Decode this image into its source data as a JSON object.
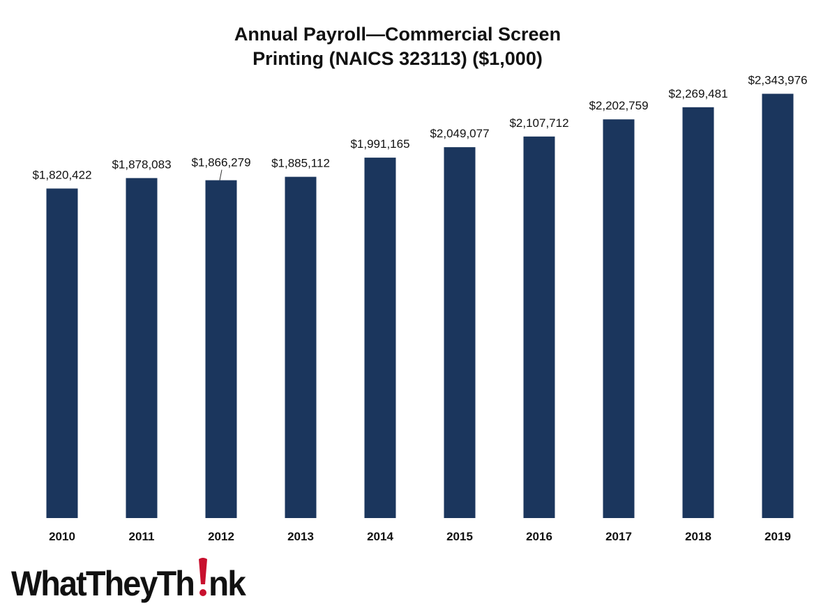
{
  "chart_data": {
    "type": "bar",
    "title": "Annual Payroll—Commercial Screen Printing  (NAICS 323113) ($1,000)",
    "title_lines": [
      "Annual Payroll—Commercial Screen",
      "Printing  (NAICS 323113) ($1,000)"
    ],
    "categories": [
      "2010",
      "2011",
      "2012",
      "2013",
      "2014",
      "2015",
      "2016",
      "2017",
      "2018",
      "2019"
    ],
    "values": [
      1820422,
      1878083,
      1866279,
      1885112,
      1991165,
      2049077,
      2107712,
      2202759,
      2269481,
      2343976
    ],
    "value_labels": [
      "$1,820,422",
      "$1,878,083",
      "$1,866,279",
      "$1,885,112",
      "$1,991,165",
      "$2,049,077",
      "$2,107,712",
      "$2,202,759",
      "$2,269,481",
      "$2,343,976"
    ],
    "xlabel": "",
    "ylabel": "",
    "ylim": [
      0,
      2500000
    ],
    "grid": false,
    "legend": "none",
    "bar_color": "#1b365d"
  },
  "logo": {
    "text": "WhatTheyThink",
    "accent_color": "#c8102e"
  }
}
